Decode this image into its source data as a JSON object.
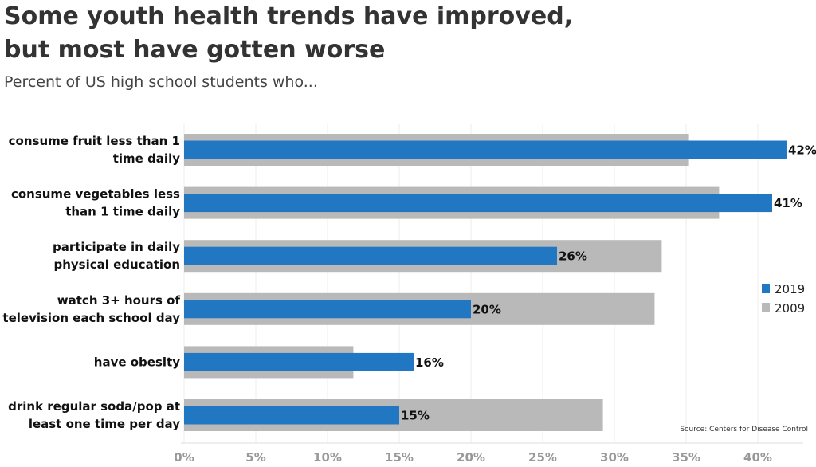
{
  "header": {
    "title_line1": "Some youth health trends have improved,",
    "title_line2": "but most have gotten worse",
    "subtitle": "Percent of US high school students who..."
  },
  "chart_data": {
    "type": "bar",
    "orientation": "horizontal",
    "categories": [
      [
        "consume fruit less than 1",
        "time daily"
      ],
      [
        "consume vegetables less",
        "than 1 time daily"
      ],
      [
        "participate in daily",
        "physical education"
      ],
      [
        "watch 3+ hours of",
        "television each school day"
      ],
      [
        "have obesity"
      ],
      [
        "drink regular soda/pop at",
        "least one time per day"
      ]
    ],
    "series": [
      {
        "name": "2019",
        "color": "#2277c3",
        "values": [
          42,
          41,
          26,
          20,
          16,
          15
        ],
        "data_labels": [
          "42%",
          "41%",
          "26%",
          "20%",
          "16%",
          "15%"
        ]
      },
      {
        "name": "2009",
        "color": "#b9b9b9",
        "values": [
          35.2,
          37.3,
          33.3,
          32.8,
          11.8,
          29.2
        ]
      }
    ],
    "xlim": [
      0,
      44
    ],
    "xticks": [
      0,
      5,
      10,
      15,
      20,
      25,
      30,
      35,
      40
    ],
    "xtick_labels": [
      "0%",
      "5%",
      "10%",
      "15%",
      "20%",
      "25%",
      "30%",
      "35%",
      "40%"
    ],
    "grid": true,
    "legend": {
      "position": "right",
      "entries": [
        "2019",
        "2009"
      ]
    },
    "source": "Source: Centers for Disease Control"
  }
}
